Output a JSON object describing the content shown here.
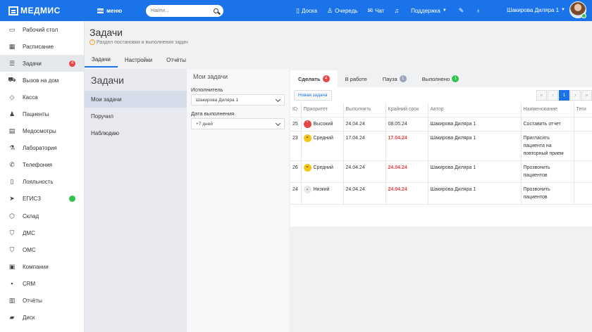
{
  "topbar": {
    "brand": "МЕДМИС",
    "menu_label": "меню",
    "search_placeholder": "Найти...",
    "links": [
      {
        "label": "Доска",
        "icon": "tablet-icon"
      },
      {
        "label": "Очередь",
        "icon": "queue-icon"
      },
      {
        "label": "Чат",
        "icon": "chat-icon"
      },
      {
        "label": "",
        "icon": "bell-icon"
      },
      {
        "label": "Поддержка",
        "icon": "chevron-down-icon"
      },
      {
        "label": "",
        "icon": "tools-icon"
      },
      {
        "label": "",
        "icon": "bulb-icon"
      }
    ],
    "user_name": "Шакирова Диляра 1"
  },
  "sidebar": {
    "items": [
      {
        "label": "Рабочий стол",
        "icon": "monitor-icon"
      },
      {
        "label": "Расписание",
        "icon": "calendar-icon"
      },
      {
        "label": "Задачи",
        "icon": "tasks-icon",
        "badge": "4"
      },
      {
        "label": "Вызов на дом",
        "icon": "car-icon"
      },
      {
        "label": "Касса",
        "icon": "cash-icon"
      },
      {
        "label": "Пациенты",
        "icon": "patients-icon"
      },
      {
        "label": "Медосмотры",
        "icon": "document-icon"
      },
      {
        "label": "Лаборатория",
        "icon": "lab-icon"
      },
      {
        "label": "Телефония",
        "icon": "phone-icon"
      },
      {
        "label": "Лояльность",
        "icon": "loyalty-icon"
      },
      {
        "label": "ЕГИСЗ",
        "icon": "send-icon"
      },
      {
        "label": "Склад",
        "icon": "box-icon"
      },
      {
        "label": "ДМС",
        "icon": "shield-icon"
      },
      {
        "label": "ОМС",
        "icon": "shield-icon"
      },
      {
        "label": "Компании",
        "icon": "building-icon"
      },
      {
        "label": "CRM",
        "icon": "crm-icon"
      },
      {
        "label": "Отчёты",
        "icon": "chart-icon"
      },
      {
        "label": "Диск",
        "icon": "folder-icon"
      }
    ]
  },
  "page": {
    "title": "Задачи",
    "subtitle": "Раздел постановки и выполнения задач",
    "tabs": [
      "Задачи",
      "Настройки",
      "Отчёты"
    ]
  },
  "left_panel": {
    "title": "Задачи",
    "items": [
      "Мои задачи",
      "Поручил",
      "Наблюдаю"
    ]
  },
  "filters": {
    "title": "Мои задачи",
    "executor_label": "Исполнитель",
    "executor_value": "Шакирова Диляра 1",
    "date_label": "Дата выполнения",
    "date_value": "+7 дней"
  },
  "status_tabs": [
    {
      "label": "Сделать",
      "count": "4",
      "color": "#e64646"
    },
    {
      "label": "В работе",
      "count": "",
      "color": ""
    },
    {
      "label": "Пауза",
      "count": "1",
      "color": "#9aa3b8"
    },
    {
      "label": "Выполнено",
      "count": "1",
      "color": "#2ec24a"
    }
  ],
  "toolbar": {
    "new_task": "Новая задача",
    "pager": [
      "«",
      "‹",
      "1",
      "›",
      "»"
    ]
  },
  "table": {
    "headers": [
      "ID",
      "Приоритет",
      "Выполнить",
      "Крайний срок",
      "Автор",
      "Наименование",
      "Теги"
    ],
    "rows": [
      {
        "id": "25",
        "priority": "Высокий",
        "level": "high",
        "do": "24.04.24",
        "deadline": "08.05.24",
        "deadline_overdue": false,
        "author": "Шакирова Диляра 1",
        "name": "Составить отчет"
      },
      {
        "id": "23",
        "priority": "Средний",
        "level": "mid",
        "do": "17.04.24",
        "deadline": "17.04.24",
        "deadline_overdue": true,
        "author": "Шакирова Диляра 1",
        "name": "Пригласить пациента на повторный прием"
      },
      {
        "id": "26",
        "priority": "Средний",
        "level": "mid",
        "do": "24.04.24",
        "deadline": "24.04.24",
        "deadline_overdue": true,
        "author": "Шакирова Диляра 1",
        "name": "Прозвонить пациентов"
      },
      {
        "id": "24",
        "priority": "Низкий",
        "level": "low",
        "do": "24.04.24",
        "deadline": "24.04.24",
        "deadline_overdue": true,
        "author": "Шакирова Диляра 1",
        "name": "Прозвонить пациентов"
      }
    ]
  },
  "colors": {
    "accent": "#1a73e8",
    "danger": "#e64646",
    "success": "#2ec24a"
  }
}
